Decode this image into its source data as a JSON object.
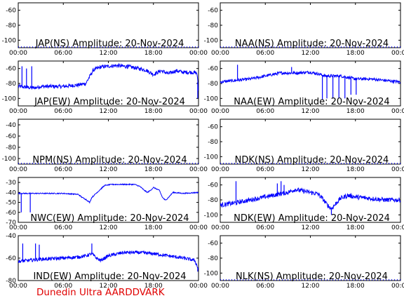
{
  "footer_text": "Dunedin Ultra AARDDVARK",
  "colors": {
    "trace": "#0000ff",
    "axes": "#000000",
    "footer": "#e00000"
  },
  "chart_data": [
    {
      "type": "line",
      "title": "JAP(NS) Amplitude: 20-Nov-2024",
      "xticks": [
        "00:00",
        "06:00",
        "12:00",
        "18:00",
        "00:00"
      ],
      "yticks": [
        -60,
        -80,
        -100
      ],
      "ylim": [
        -110,
        -50
      ],
      "series": [
        {
          "points": []
        }
      ]
    },
    {
      "type": "line",
      "title": "NAA(NS) Amplitude: 20-Nov-2024",
      "xticks": [
        "00:00",
        "06:00",
        "12:00",
        "18:00",
        "00:00"
      ],
      "yticks": [
        -60,
        -80,
        -100
      ],
      "ylim": [
        -110,
        -50
      ],
      "series": [
        {
          "points": []
        }
      ]
    },
    {
      "type": "line",
      "title": "JAP(EW) Amplitude: 20-Nov-2024",
      "xticks": [
        "00:00",
        "06:00",
        "12:00",
        "18:00",
        "00:00"
      ],
      "yticks": [
        -60,
        -80,
        -100
      ],
      "ylim": [
        -110,
        -50
      ],
      "series": [
        {
          "points": [
            [
              0,
              -84
            ],
            [
              2,
              -86
            ],
            [
              3,
              -84
            ],
            [
              6,
              -84
            ],
            [
              8,
              -82
            ],
            [
              9,
              -80
            ],
            [
              10,
              -62
            ],
            [
              11,
              -58
            ],
            [
              12,
              -57
            ],
            [
              13,
              -56
            ],
            [
              15,
              -58
            ],
            [
              16,
              -60
            ],
            [
              17,
              -62
            ],
            [
              18,
              -68
            ],
            [
              19,
              -63
            ],
            [
              20,
              -67
            ],
            [
              21,
              -63
            ],
            [
              22,
              -65
            ],
            [
              23,
              -65
            ],
            [
              23.8,
              -66
            ],
            [
              24,
              -90
            ]
          ],
          "spikes": [
            [
              0.5,
              -57
            ],
            [
              1.1,
              -60
            ],
            [
              1.8,
              -57
            ],
            [
              14.5,
              -55
            ],
            [
              23.9,
              -100
            ]
          ],
          "noise": 5
        }
      ]
    },
    {
      "type": "line",
      "title": "NAA(EW) Amplitude: 20-Nov-2024",
      "xticks": [
        "00:00",
        "06:00",
        "12:00",
        "18:00",
        "00:00"
      ],
      "yticks": [
        -60,
        -80,
        -100
      ],
      "ylim": [
        -110,
        -50
      ],
      "series": [
        {
          "points": [
            [
              0,
              -78
            ],
            [
              2,
              -76
            ],
            [
              4,
              -74
            ],
            [
              6,
              -70
            ],
            [
              8,
              -66
            ],
            [
              10,
              -66
            ],
            [
              12,
              -65
            ],
            [
              13,
              -67
            ],
            [
              14,
              -70
            ],
            [
              16,
              -70
            ],
            [
              18,
              -74
            ],
            [
              20,
              -74
            ],
            [
              22,
              -76
            ],
            [
              24,
              -78
            ]
          ],
          "spikes": [
            [
              2.3,
              -55
            ],
            [
              9.5,
              -58
            ],
            [
              13.6,
              -102
            ],
            [
              14.2,
              -100
            ],
            [
              15,
              -100
            ],
            [
              15.8,
              -100
            ],
            [
              16.6,
              -100
            ],
            [
              17.4,
              -95
            ],
            [
              18.1,
              -95
            ]
          ],
          "noise": 4
        }
      ]
    },
    {
      "type": "line",
      "title": "NPM(NS) Amplitude: 20-Nov-2024",
      "xticks": [
        "00:00",
        "06:00",
        "12:00",
        "18:00",
        "00:00"
      ],
      "yticks": [
        -40,
        -60,
        -80,
        -100
      ],
      "ylim": [
        -110,
        -30
      ],
      "series": [
        {
          "points": []
        }
      ]
    },
    {
      "type": "line",
      "title": "NDK(NS) Amplitude: 20-Nov-2024",
      "xticks": [
        "00:00",
        "06:00",
        "12:00",
        "18:00",
        "00:00"
      ],
      "yticks": [
        -60,
        -80,
        -100
      ],
      "ylim": [
        -110,
        -50
      ],
      "series": [
        {
          "points": []
        }
      ]
    },
    {
      "type": "line",
      "title": "NWC(EW) Amplitude: 20-Nov-2024",
      "xticks": [
        "00:00",
        "06:00",
        "12:00",
        "18:00",
        "00:00"
      ],
      "yticks": [
        -30,
        -40,
        -50,
        -60,
        -70
      ],
      "ylim": [
        -70,
        -25
      ],
      "series": [
        {
          "points": [
            [
              0,
              -41
            ],
            [
              2,
              -41
            ],
            [
              4,
              -41
            ],
            [
              6,
              -41
            ],
            [
              8,
              -42
            ],
            [
              8.5,
              -45
            ],
            [
              9,
              -47
            ],
            [
              9.5,
              -50
            ],
            [
              9.8,
              -45
            ],
            [
              10.5,
              -40
            ],
            [
              11.5,
              -33
            ],
            [
              12.5,
              -32
            ],
            [
              14,
              -32
            ],
            [
              15.5,
              -32
            ],
            [
              16.2,
              -34
            ],
            [
              16.8,
              -38
            ],
            [
              17.2,
              -40
            ],
            [
              17.6,
              -38
            ],
            [
              18,
              -35
            ],
            [
              18.8,
              -38
            ],
            [
              19.2,
              -45
            ],
            [
              19.6,
              -48
            ],
            [
              20,
              -45
            ],
            [
              20.6,
              -40
            ],
            [
              22,
              -41
            ],
            [
              24,
              -40
            ]
          ],
          "spikes": [
            [
              0.4,
              -60
            ],
            [
              1.6,
              -60
            ]
          ],
          "noise": 1
        }
      ]
    },
    {
      "type": "line",
      "title": "NDK(EW) Amplitude: 20-Nov-2024",
      "xticks": [
        "00:00",
        "06:00",
        "12:00",
        "18:00",
        "00:00"
      ],
      "yticks": [
        -60,
        -80,
        -100
      ],
      "ylim": [
        -110,
        -50
      ],
      "series": [
        {
          "points": [
            [
              0,
              -87
            ],
            [
              2,
              -84
            ],
            [
              4,
              -80
            ],
            [
              6,
              -76
            ],
            [
              8,
              -72
            ],
            [
              9,
              -70
            ],
            [
              10,
              -66
            ],
            [
              11,
              -68
            ],
            [
              12,
              -70
            ],
            [
              13,
              -72
            ],
            [
              13.6,
              -78
            ],
            [
              14.2,
              -86
            ],
            [
              14.8,
              -92
            ],
            [
              15.4,
              -85
            ],
            [
              16,
              -78
            ],
            [
              17,
              -74
            ],
            [
              18,
              -76
            ],
            [
              20,
              -78
            ],
            [
              22,
              -80
            ],
            [
              24,
              -80
            ]
          ],
          "spikes": [
            [
              2.1,
              -55
            ],
            [
              7.6,
              -58
            ],
            [
              8.1,
              -55
            ],
            [
              8.5,
              -60
            ],
            [
              14.8,
              -100
            ]
          ],
          "noise": 6
        }
      ]
    },
    {
      "type": "line",
      "title": "IND(EW) Amplitude: 20-Nov-2024",
      "xticks": [
        "00:00",
        "06:00",
        "12:00",
        "18:00",
        "00:00"
      ],
      "yticks": [
        -40,
        -60,
        -80
      ],
      "ylim": [
        -80,
        -40
      ],
      "series": [
        {
          "points": [
            [
              0,
              -63
            ],
            [
              3,
              -61
            ],
            [
              6,
              -60
            ],
            [
              8,
              -59
            ],
            [
              9,
              -58
            ],
            [
              9.8,
              -56
            ],
            [
              10.4,
              -60
            ],
            [
              11,
              -62
            ],
            [
              12,
              -58
            ],
            [
              14,
              -55
            ],
            [
              16,
              -55
            ],
            [
              18,
              -56
            ],
            [
              20,
              -58
            ],
            [
              22,
              -60
            ],
            [
              23.5,
              -62
            ],
            [
              24,
              -70
            ]
          ],
          "spikes": [
            [
              0.6,
              -47
            ],
            [
              2.3,
              -47
            ],
            [
              2.8,
              -48
            ],
            [
              9.8,
              -47
            ],
            [
              23.9,
              -72
            ]
          ],
          "noise": 3
        }
      ]
    },
    {
      "type": "line",
      "title": "NLK(NS) Amplitude: 20-Nov-2024",
      "xticks": [
        "00:00",
        "06:00",
        "12:00",
        "18:00",
        "00:00"
      ],
      "yticks": [
        -60,
        -80,
        -100
      ],
      "ylim": [
        -110,
        -50
      ],
      "series": [
        {
          "points": []
        }
      ]
    }
  ]
}
